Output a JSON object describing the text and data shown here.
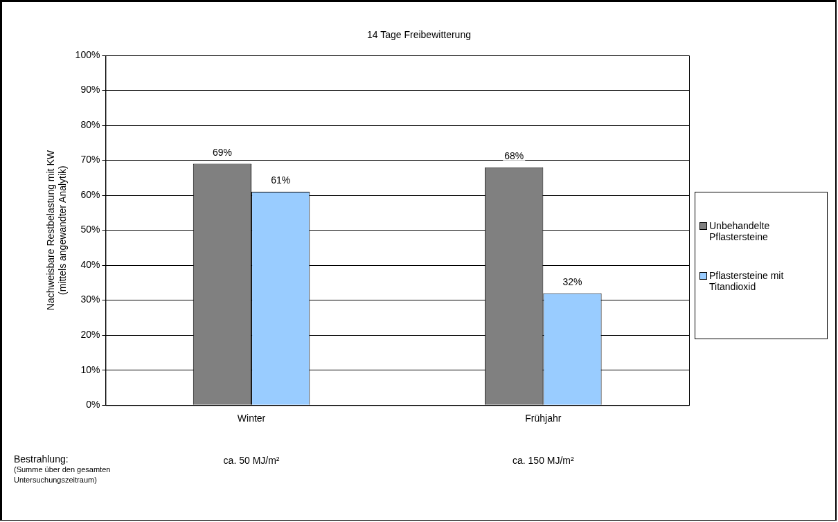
{
  "chart_data": {
    "type": "bar",
    "title": "14 Tage Freibewitterung",
    "ylabel": "Nachweisbare Restbelastung mit KW\n(mittels angewandter Analytik)",
    "categories": [
      "Winter",
      "Frühjahr"
    ],
    "series": [
      {
        "name": "Unbehandelte Pflastersteine",
        "color": "#808080",
        "values": [
          69,
          68
        ],
        "value_labels": [
          "69%",
          "68%"
        ]
      },
      {
        "name": "Pflastersteine mit Titandioxid",
        "color": "#99ccff",
        "values": [
          61,
          32
        ],
        "value_labels": [
          "61%",
          "32%"
        ]
      }
    ],
    "ylim": [
      0,
      100
    ],
    "yticks": [
      {
        "value": 0,
        "label": "0%"
      },
      {
        "value": 10,
        "label": "10%"
      },
      {
        "value": 20,
        "label": "20%"
      },
      {
        "value": 30,
        "label": "30%"
      },
      {
        "value": 40,
        "label": "40%"
      },
      {
        "value": 50,
        "label": "50%"
      },
      {
        "value": 60,
        "label": "60%"
      },
      {
        "value": 70,
        "label": "70%"
      },
      {
        "value": 80,
        "label": "80%"
      },
      {
        "value": 90,
        "label": "90%"
      },
      {
        "value": 100,
        "label": "100%"
      }
    ],
    "grid": "y",
    "legend": "right",
    "annotations": [
      "Bestrahlung:",
      "(Summe über den gesamten Untersuchungszeitraum)",
      "ca. 50 MJ/m²",
      "ca. 150 MJ/m²"
    ]
  }
}
